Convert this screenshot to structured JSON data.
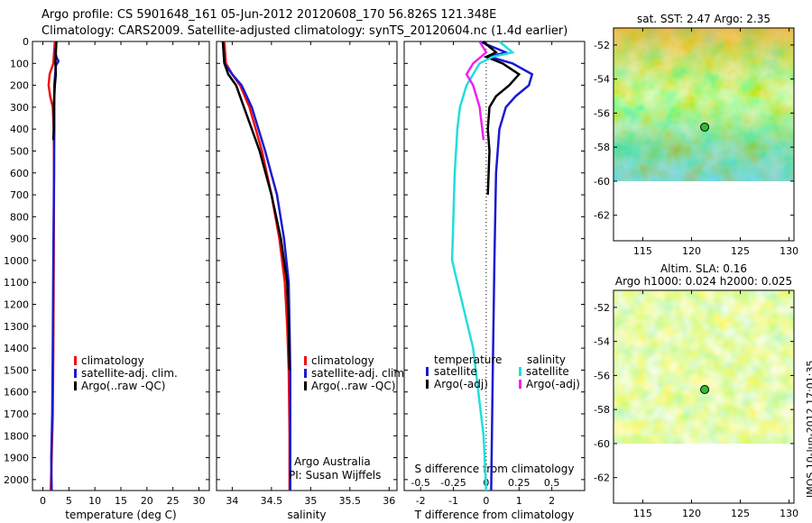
{
  "titles": {
    "line1": "Argo profile: CS 5901648_161 05-Jun-2012 20120608_170 56.826S 121.348E",
    "line2": "Climatology: CARS2009. Satellite-adjusted climatology: synTS_20120604.nc (1.4d earlier)"
  },
  "colors": {
    "climatology": "#ee1111",
    "satellite": "#1a1ad0",
    "argo": "#000000",
    "sal_sat": "#22dddd",
    "sal_argo": "#ee22ee"
  },
  "chart_data": [
    {
      "type": "line",
      "xlabel": "temperature (deg C)",
      "xlim": [
        -2,
        32
      ],
      "ylim": [
        2050,
        0
      ],
      "invert_y": true,
      "xticks": [
        0,
        5,
        10,
        15,
        20,
        25,
        30
      ],
      "yticks": [
        0,
        100,
        200,
        300,
        400,
        500,
        600,
        700,
        800,
        900,
        1000,
        1100,
        1200,
        1300,
        1400,
        1500,
        1600,
        1700,
        1800,
        1900,
        2000
      ],
      "legend": [
        "climatology",
        "satellite-adj. clim.",
        "Argo(..raw -QC)"
      ],
      "series": [
        {
          "name": "climatology",
          "color": "#ee1111",
          "x": [
            2.3,
            2.0,
            1.3,
            1.1,
            1.4,
            1.9,
            2.1,
            2.15,
            2.1,
            2.0,
            1.9,
            1.7,
            1.5
          ],
          "y": [
            0,
            100,
            150,
            200,
            250,
            300,
            400,
            600,
            1000,
            1400,
            1700,
            1900,
            2050
          ]
        },
        {
          "name": "satellite-adj. clim.",
          "color": "#1a1ad0",
          "x": [
            2.6,
            2.4,
            2.6,
            3.0,
            2.5,
            2.2,
            2.2,
            2.15,
            2.0,
            1.9,
            1.8,
            1.6,
            1.7
          ],
          "y": [
            0,
            50,
            70,
            90,
            110,
            200,
            400,
            600,
            1000,
            1400,
            1700,
            1900,
            2050
          ]
        },
        {
          "name": "Argo(..raw -QC)",
          "color": "#000000",
          "x": [
            2.6,
            2.5,
            2.4,
            2.5,
            2.3,
            2.1,
            2.1,
            2.0
          ],
          "y": [
            0,
            50,
            100,
            150,
            200,
            300,
            400,
            450
          ]
        }
      ]
    },
    {
      "type": "line",
      "xlabel": "salinity",
      "xlim": [
        33.8,
        36.1
      ],
      "ylim": [
        2050,
        0
      ],
      "invert_y": true,
      "xticks": [
        34,
        34.5,
        35,
        35.5,
        36
      ],
      "legend": [
        "climatology",
        "satellite-adj. clim.",
        "Argo(..raw -QC)"
      ],
      "annotations": [
        "Argo Australia",
        "PI: Susan Wijffels"
      ],
      "series": [
        {
          "name": "climatology",
          "color": "#ee1111",
          "x": [
            33.9,
            33.92,
            34.0,
            34.1,
            34.22,
            34.38,
            34.5,
            34.6,
            34.67,
            34.7,
            34.72,
            34.73,
            34.73
          ],
          "y": [
            0,
            100,
            150,
            200,
            300,
            500,
            700,
            900,
            1100,
            1300,
            1500,
            1800,
            2050
          ]
        },
        {
          "name": "satellite-adj. clim.",
          "color": "#1a1ad0",
          "x": [
            33.88,
            33.9,
            34.0,
            34.12,
            34.25,
            34.42,
            34.57,
            34.66,
            34.72,
            34.73,
            34.74,
            34.74
          ],
          "y": [
            0,
            100,
            150,
            200,
            300,
            500,
            700,
            900,
            1100,
            1300,
            1500,
            2050
          ]
        },
        {
          "name": "Argo(..raw -QC)",
          "color": "#000000",
          "x": [
            33.88,
            33.9,
            33.95,
            34.05,
            34.15,
            34.35,
            34.5,
            34.62,
            34.7,
            34.72,
            34.73
          ],
          "y": [
            0,
            100,
            150,
            200,
            300,
            500,
            700,
            900,
            1100,
            1300,
            1500
          ]
        }
      ]
    },
    {
      "type": "line",
      "xlabel": "T difference from climatology",
      "x2label": "S difference from climatology",
      "xlim": [
        -2.5,
        3.0
      ],
      "x2lim": [
        -0.625,
        0.75
      ],
      "ylim": [
        2050,
        0
      ],
      "invert_y": true,
      "xticks": [
        -2,
        -1,
        0,
        1,
        2
      ],
      "x2ticks": [
        -0.5,
        -0.25,
        0,
        0.25,
        0.5
      ],
      "x2ticklabels": [
        "-0.5",
        "-0.25",
        "0",
        "0.25",
        "0.5"
      ],
      "legend": {
        "temperature_title": "temperature",
        "salinity_title": "salinity",
        "t_sat": "satellite",
        "t_argo": "Argo(-adj)",
        "s_sat": "satellite",
        "s_argo": "Argo(-adj)"
      },
      "series": [
        {
          "name": "T satellite",
          "color": "#1a1ad0",
          "x": [
            -0.2,
            0.6,
            0.1,
            0.8,
            1.4,
            1.3,
            0.9,
            0.6,
            0.4,
            0.3,
            0.25,
            0.2,
            0.15
          ],
          "y": [
            0,
            50,
            70,
            100,
            150,
            200,
            250,
            300,
            400,
            600,
            1000,
            1500,
            2050
          ]
        },
        {
          "name": "T Argo(-adj)",
          "color": "#000000",
          "x": [
            -0.1,
            0.3,
            0.0,
            0.5,
            1.0,
            0.7,
            0.3,
            0.1,
            0.05,
            0.1,
            0.05
          ],
          "y": [
            0,
            50,
            70,
            100,
            150,
            200,
            250,
            300,
            400,
            500,
            700
          ]
        },
        {
          "name": "S satellite",
          "color": "#22dddd",
          "x": [
            0.1,
            0.2,
            0.05,
            -0.05,
            -0.15,
            -0.2,
            -0.22,
            -0.24,
            -0.26,
            -0.1,
            -0.02,
            0.0
          ],
          "y": [
            0,
            50,
            70,
            100,
            200,
            300,
            400,
            600,
            1000,
            1400,
            1800,
            2050
          ]
        },
        {
          "name": "S Argo(-adj)",
          "color": "#ee22ee",
          "x": [
            -0.05,
            0.0,
            -0.1,
            -0.15,
            -0.1,
            -0.05,
            -0.02
          ],
          "y": [
            0,
            50,
            100,
            150,
            200,
            300,
            450
          ]
        }
      ]
    },
    {
      "type": "heatmap",
      "title": "sat. SST: 2.47 Argo: 2.35",
      "xlim": [
        112,
        130.5
      ],
      "ylim": [
        -63.5,
        -51
      ],
      "data_ylim": [
        -60,
        -51
      ],
      "xticks": [
        115,
        120,
        125,
        130
      ],
      "yticks": [
        -52,
        -54,
        -56,
        -58,
        -60,
        -62
      ],
      "marker": {
        "lon": 121.348,
        "lat": -56.826
      }
    },
    {
      "type": "heatmap",
      "title": "Altim. SLA: 0.16",
      "subtitle": "Argo h1000: 0.024 h2000: 0.025",
      "xlim": [
        112,
        130.5
      ],
      "ylim": [
        -63.5,
        -51
      ],
      "data_ylim": [
        -60,
        -51
      ],
      "xticks": [
        115,
        120,
        125,
        130
      ],
      "yticks": [
        -52,
        -54,
        -56,
        -58,
        -60,
        -62
      ],
      "marker": {
        "lon": 121.348,
        "lat": -56.826
      }
    }
  ],
  "stamp": "IMOS 10-Jun-2012 17:01:35"
}
